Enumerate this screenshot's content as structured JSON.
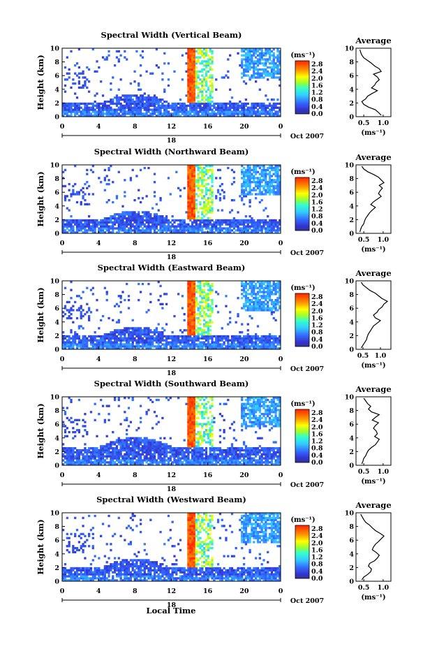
{
  "figure": {
    "xlabel": "Local Time",
    "date_label": "Oct 2007",
    "day_label": "18",
    "ylabel": "Height (km)",
    "colorbar_unit": "(ms⁻¹)",
    "avg_title": "Average",
    "avg_xlabel": "(ms⁻¹)"
  },
  "chart_data": [
    {
      "type": "heatmap",
      "title": "Spectral Width (Vertical Beam)",
      "x_ticks": [
        "0",
        "4",
        "8",
        "12",
        "16",
        "20",
        "0"
      ],
      "xlim": [
        0,
        24
      ],
      "y_ticks": [
        "0",
        "2",
        "4",
        "6",
        "8",
        "10"
      ],
      "ylim": [
        0,
        10
      ],
      "colorbar_ticks": [
        "0.0",
        "0.4",
        "0.8",
        "1.2",
        "1.6",
        "2.0",
        "2.4",
        "2.8"
      ],
      "colorbar_range": [
        0,
        3.0
      ],
      "avg_profile": {
        "x_ticks": [
          "0.5",
          "1.0"
        ],
        "xlim": [
          0.3,
          1.2
        ],
        "heights": [
          0.2,
          0.6,
          1.0,
          1.4,
          1.8,
          2.2,
          2.6,
          3.0,
          3.4,
          3.8,
          4.2,
          4.6,
          5.0,
          5.4,
          5.8,
          6.2,
          6.6,
          7.0,
          7.4,
          7.8,
          8.2,
          8.6,
          9.0,
          9.4,
          9.8
        ],
        "values": [
          0.95,
          0.88,
          0.8,
          0.62,
          0.5,
          0.45,
          0.55,
          0.6,
          0.72,
          0.85,
          0.7,
          0.78,
          0.82,
          0.9,
          0.85,
          0.75,
          0.95,
          0.9,
          0.78,
          0.7,
          0.6,
          0.5,
          0.45,
          0.42,
          0.4
        ]
      }
    },
    {
      "type": "heatmap",
      "title": "Spectral Width (Northward Beam)",
      "x_ticks": [
        "0",
        "4",
        "8",
        "12",
        "16",
        "20",
        "0"
      ],
      "xlim": [
        0,
        24
      ],
      "y_ticks": [
        "0",
        "2",
        "4",
        "6",
        "8",
        "10"
      ],
      "ylim": [
        0,
        10
      ],
      "colorbar_ticks": [
        "0.0",
        "0.4",
        "0.8",
        "1.2",
        "1.6",
        "2.0",
        "2.4",
        "2.8"
      ],
      "colorbar_range": [
        0,
        3.0
      ],
      "avg_profile": {
        "x_ticks": [
          "0.5",
          "1.0"
        ],
        "xlim": [
          0.3,
          1.2
        ],
        "heights": [
          0.2,
          0.6,
          1.0,
          1.4,
          1.8,
          2.2,
          2.6,
          3.0,
          3.4,
          3.8,
          4.2,
          4.6,
          5.0,
          5.4,
          5.8,
          6.2,
          6.6,
          7.0,
          7.4,
          7.8,
          8.2,
          8.6,
          9.0,
          9.4,
          9.8
        ],
        "values": [
          0.4,
          0.42,
          0.45,
          0.5,
          0.52,
          0.55,
          0.6,
          0.65,
          0.72,
          0.8,
          0.68,
          0.75,
          0.85,
          0.95,
          0.88,
          0.92,
          0.98,
          0.9,
          1.02,
          0.95,
          0.88,
          0.75,
          0.6,
          0.5,
          0.45
        ]
      }
    },
    {
      "type": "heatmap",
      "title": "Spectral Width (Eastward Beam)",
      "x_ticks": [
        "0",
        "4",
        "8",
        "12",
        "16",
        "20",
        "0"
      ],
      "xlim": [
        0,
        24
      ],
      "y_ticks": [
        "0",
        "2",
        "4",
        "6",
        "8",
        "10"
      ],
      "ylim": [
        0,
        10
      ],
      "colorbar_ticks": [
        "0.0",
        "0.4",
        "0.8",
        "1.2",
        "1.6",
        "2.0",
        "2.4",
        "2.8"
      ],
      "colorbar_range": [
        0,
        3.0
      ],
      "avg_profile": {
        "x_ticks": [
          "0.5",
          "1.0"
        ],
        "xlim": [
          0.3,
          1.3
        ],
        "heights": [
          0.2,
          0.6,
          1.0,
          1.4,
          1.8,
          2.2,
          2.6,
          3.0,
          3.4,
          3.8,
          4.2,
          4.6,
          5.0,
          5.4,
          5.8,
          6.2,
          6.6,
          7.0,
          7.4,
          7.8,
          8.2,
          8.6,
          9.0,
          9.4,
          9.8
        ],
        "values": [
          0.45,
          0.5,
          0.55,
          0.6,
          0.62,
          0.65,
          0.7,
          0.75,
          0.8,
          0.9,
          1.0,
          0.85,
          0.8,
          0.9,
          0.95,
          1.05,
          1.1,
          1.2,
          1.05,
          0.95,
          0.85,
          0.7,
          0.6,
          0.5,
          0.45
        ]
      }
    },
    {
      "type": "heatmap",
      "title": "Spectral Width (Southward Beam)",
      "x_ticks": [
        "0",
        "4",
        "8",
        "12",
        "16",
        "20",
        "0"
      ],
      "xlim": [
        0,
        24
      ],
      "y_ticks": [
        "0",
        "2",
        "4",
        "6",
        "8",
        "10"
      ],
      "ylim": [
        0,
        10
      ],
      "colorbar_ticks": [
        "0.0",
        "0.4",
        "0.8",
        "1.2",
        "1.6",
        "2.0",
        "2.4",
        "2.8"
      ],
      "colorbar_range": [
        0,
        3.0
      ],
      "avg_profile": {
        "x_ticks": [
          "0.5",
          "1.0"
        ],
        "xlim": [
          0.3,
          1.2
        ],
        "heights": [
          0.2,
          0.6,
          1.0,
          1.4,
          1.8,
          2.2,
          2.6,
          3.0,
          3.4,
          3.8,
          4.2,
          4.6,
          5.0,
          5.4,
          5.8,
          6.2,
          6.6,
          7.0,
          7.4,
          7.8,
          8.2,
          8.6,
          9.0,
          9.4,
          9.8
        ],
        "values": [
          0.45,
          0.48,
          0.5,
          0.55,
          0.58,
          0.62,
          0.7,
          0.8,
          0.85,
          0.9,
          0.78,
          0.85,
          0.82,
          0.75,
          0.8,
          0.88,
          0.72,
          0.8,
          0.9,
          0.7,
          0.62,
          0.68,
          0.6,
          0.55,
          0.5
        ]
      }
    },
    {
      "type": "heatmap",
      "title": "Spectral Width (Westward Beam)",
      "x_ticks": [
        "0",
        "4",
        "8",
        "12",
        "16",
        "20",
        "0"
      ],
      "xlim": [
        0,
        24
      ],
      "y_ticks": [
        "0",
        "2",
        "4",
        "6",
        "8",
        "10"
      ],
      "ylim": [
        0,
        10
      ],
      "colorbar_ticks": [
        "0.0",
        "0.4",
        "0.8",
        "1.2",
        "1.6",
        "2.0",
        "2.4",
        "2.8"
      ],
      "colorbar_range": [
        0,
        3.0
      ],
      "avg_profile": {
        "x_ticks": [
          "0.5",
          "1.0"
        ],
        "xlim": [
          0.3,
          1.2
        ],
        "heights": [
          0.2,
          0.6,
          1.0,
          1.4,
          1.8,
          2.2,
          2.6,
          3.0,
          3.4,
          3.8,
          4.2,
          4.6,
          5.0,
          5.4,
          5.8,
          6.2,
          6.6,
          7.0,
          7.4,
          7.8,
          8.2,
          8.6,
          9.0,
          9.4,
          9.8
        ],
        "values": [
          0.45,
          0.5,
          0.6,
          0.68,
          0.7,
          0.62,
          0.65,
          0.78,
          0.85,
          0.9,
          0.82,
          0.72,
          0.75,
          0.8,
          0.88,
          0.95,
          1.02,
          0.92,
          0.8,
          0.72,
          0.65,
          0.55,
          0.5,
          0.46,
          0.42
        ]
      }
    }
  ]
}
